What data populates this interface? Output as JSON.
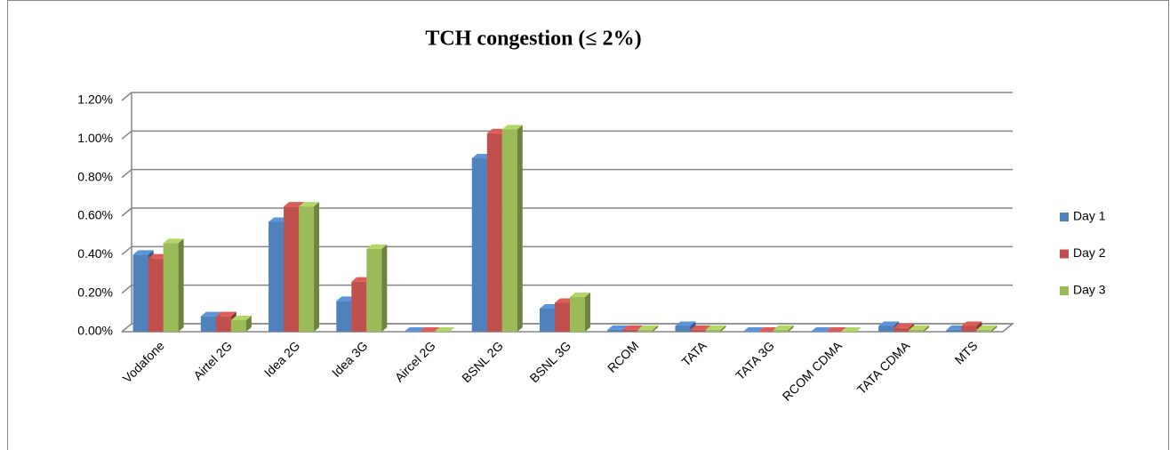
{
  "chart_data": {
    "type": "bar3d",
    "title": "TCH congestion (≤ 2%)",
    "categories": [
      "Vodafone",
      "Airtel 2G",
      "Idea 2G",
      "Idea 3G",
      "Aircel 2G",
      "BSNL 2G",
      "BSNL 3G",
      "RCOM",
      "TATA",
      "TATA 3G",
      "RCOM CDMA",
      "TATA CDMA",
      "MTS"
    ],
    "series": [
      {
        "name": "Day 1",
        "color": "#4f81bd",
        "values": [
          0.4,
          0.08,
          0.57,
          0.16,
          0,
          0.9,
          0.12,
          0.01,
          0.03,
          0,
          0,
          0.03,
          0.01
        ]
      },
      {
        "name": "Day 2",
        "color": "#c0504d",
        "values": [
          0.38,
          0.08,
          0.65,
          0.26,
          0,
          1.03,
          0.15,
          0.01,
          0.01,
          0,
          0,
          0.02,
          0.03
        ]
      },
      {
        "name": "Day 3",
        "color": "#9bbb59",
        "values": [
          0.46,
          0.06,
          0.65,
          0.43,
          0,
          1.05,
          0.18,
          0.01,
          0.01,
          0.01,
          0,
          0.01,
          0.01
        ]
      }
    ],
    "ylim": [
      0,
      1.2
    ],
    "yticks": [
      {
        "value": 0,
        "label": "0.00%"
      },
      {
        "value": 0.2,
        "label": "0.20%"
      },
      {
        "value": 0.4,
        "label": "0.40%"
      },
      {
        "value": 0.6,
        "label": "0.60%"
      },
      {
        "value": 0.8,
        "label": "0.80%"
      },
      {
        "value": 1.0,
        "label": "1.00%"
      },
      {
        "value": 1.2,
        "label": "1.20%"
      }
    ],
    "grid": true,
    "legend": "right"
  }
}
